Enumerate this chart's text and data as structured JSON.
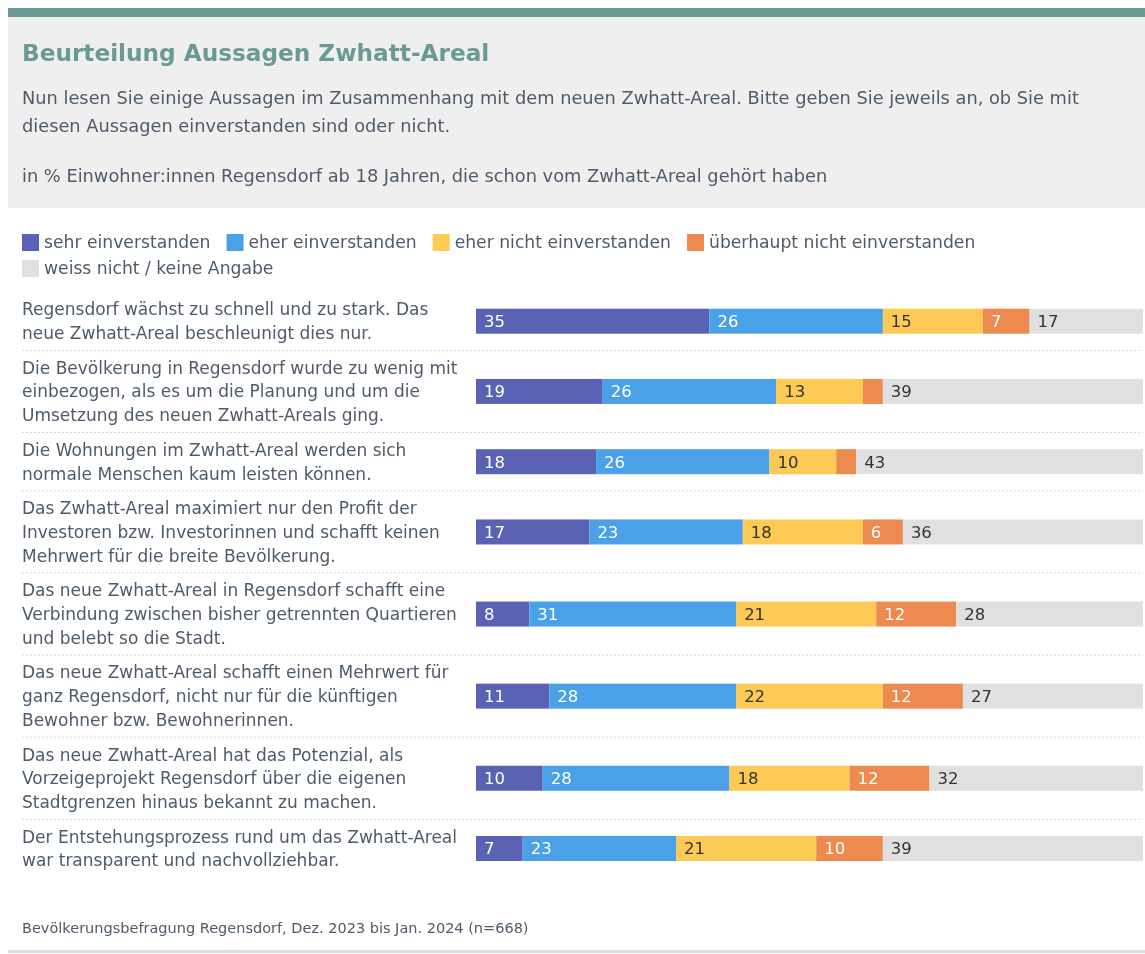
{
  "chart_data": {
    "type": "bar",
    "orientation": "horizontal",
    "stacked": true,
    "title": "Beurteilung Aussagen Zwhatt-Areal",
    "subtitle": "Nun lesen Sie einige Aussagen im Zusammenhang mit dem neuen Zwhatt-Areal. Bitte geben Sie jeweils an, ob Sie mit diesen Aussagen einverstanden sind oder nicht.",
    "annotations": [
      "in % Einwohner:innen Regensdorf ab 18 Jahren, die schon vom Zwhatt-Areal gehört haben",
      "Bevölkerungsbefragung Regensdorf, Dez. 2023 bis Jan. 2024 (n=668)"
    ],
    "categories": [
      "Regensdorf wächst zu schnell und zu stark. Das neue Zwhatt-Areal beschleunigt dies nur.",
      "Die Bevölkerung in Regensdorf wurde zu wenig mit einbezogen, als es um die Planung und um die Umsetzung des neuen Zwhatt-Areals ging.",
      "Die Wohnungen im Zwhatt-Areal werden sich normale Menschen kaum leisten können.",
      "Das Zwhatt-Areal maximiert nur den Profit der Investoren bzw. Investorinnen und schafft keinen Mehrwert für die breite Bevölkerung.",
      "Das neue Zwhatt-Areal in Regensdorf schafft eine Verbindung zwischen bisher getrennten Quartieren und belebt so die Stadt.",
      "Das neue Zwhatt-Areal schafft einen Mehrwert für ganz Regensdorf, nicht nur für die künftigen Bewohner bzw. Bewohnerinnen.",
      "Das neue Zwhatt-Areal hat das Potenzial, als Vorzeigeprojekt Regensdorf über die eigenen Stadtgrenzen hinaus bekannt zu machen.",
      "Der Entstehungsprozess rund um das Zwhatt-Areal war transparent und nachvollziehbar."
    ],
    "series": [
      {
        "name": "sehr einverstanden",
        "color": "#5a63b3",
        "values": [
          35,
          19,
          18,
          17,
          8,
          11,
          10,
          7
        ],
        "value_labels": [
          "35",
          "19",
          "18",
          "17",
          "8",
          "11",
          "10",
          "7"
        ]
      },
      {
        "name": "eher einverstanden",
        "color": "#4aa1e7",
        "values": [
          26,
          26,
          26,
          23,
          31,
          28,
          28,
          23
        ],
        "value_labels": [
          "26",
          "26",
          "26",
          "23",
          "31",
          "28",
          "28",
          "23"
        ]
      },
      {
        "name": "eher nicht einverstanden",
        "color": "#fcca55",
        "values": [
          15,
          13,
          10,
          18,
          21,
          22,
          18,
          21
        ],
        "value_labels": [
          "15",
          "13",
          "10",
          "18",
          "21",
          "22",
          "18",
          "21"
        ]
      },
      {
        "name": "überhaupt nicht einverstanden",
        "color": "#ed8a4f",
        "values": [
          7,
          3,
          3,
          6,
          12,
          12,
          12,
          10
        ],
        "value_labels": [
          "7",
          null,
          null,
          "6",
          "12",
          "12",
          "12",
          "10"
        ]
      },
      {
        "name": "weiss nicht / keine Angabe",
        "color": "#e0e0e0",
        "values": [
          17,
          39,
          43,
          36,
          28,
          27,
          32,
          39
        ],
        "value_labels": [
          "17",
          "39",
          "43",
          "36",
          "28",
          "27",
          "32",
          "39"
        ]
      }
    ],
    "xlim": [
      0,
      100
    ],
    "tick_labels": "y",
    "legend": "top"
  }
}
